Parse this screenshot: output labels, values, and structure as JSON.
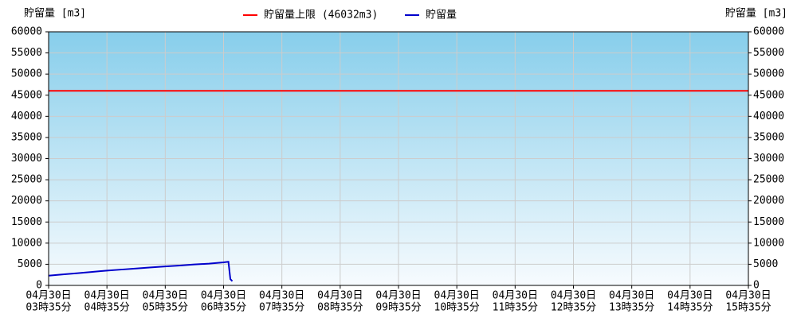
{
  "chart_data": {
    "type": "line",
    "y_label": "貯留量 [m3]",
    "y2_label": "貯留量 [m3]",
    "xlim": [
      "03:35",
      "15:35"
    ],
    "xticks": [
      {
        "value": "03:35",
        "label": [
          "04月30日",
          "03時35分"
        ]
      },
      {
        "value": "04:35",
        "label": [
          "04月30日",
          "04時35分"
        ]
      },
      {
        "value": "05:35",
        "label": [
          "04月30日",
          "05時35分"
        ]
      },
      {
        "value": "06:35",
        "label": [
          "04月30日",
          "06時35分"
        ]
      },
      {
        "value": "07:35",
        "label": [
          "04月30日",
          "07時35分"
        ]
      },
      {
        "value": "08:35",
        "label": [
          "04月30日",
          "08時35分"
        ]
      },
      {
        "value": "09:35",
        "label": [
          "04月30日",
          "09時35分"
        ]
      },
      {
        "value": "10:35",
        "label": [
          "04月30日",
          "10時35分"
        ]
      },
      {
        "value": "11:35",
        "label": [
          "04月30日",
          "11時35分"
        ]
      },
      {
        "value": "12:35",
        "label": [
          "04月30日",
          "12時35分"
        ]
      },
      {
        "value": "13:35",
        "label": [
          "04月30日",
          "13時35分"
        ]
      },
      {
        "value": "14:35",
        "label": [
          "04月30日",
          "14時35分"
        ]
      },
      {
        "value": "15:35",
        "label": [
          "04月30日",
          "15時35分"
        ]
      }
    ],
    "ylim": [
      0,
      60000
    ],
    "yticks": [
      0,
      5000,
      10000,
      15000,
      20000,
      25000,
      30000,
      35000,
      40000,
      45000,
      50000,
      55000,
      60000
    ],
    "grid": true,
    "limit": {
      "name": "貯留量上限 (46032m3)",
      "value": 46032,
      "color": "#ff0000"
    },
    "series": [
      {
        "name": "貯留量",
        "color": "#0000cc",
        "x": [
          "03:35",
          "03:50",
          "04:05",
          "04:20",
          "04:35",
          "04:50",
          "05:05",
          "05:20",
          "05:35",
          "05:50",
          "06:05",
          "06:20",
          "06:35",
          "06:40",
          "06:42",
          "06:44"
        ],
        "values": [
          2300,
          2600,
          2900,
          3200,
          3500,
          3750,
          4000,
          4250,
          4500,
          4700,
          4950,
          5150,
          5450,
          5600,
          1500,
          1000
        ]
      }
    ]
  }
}
